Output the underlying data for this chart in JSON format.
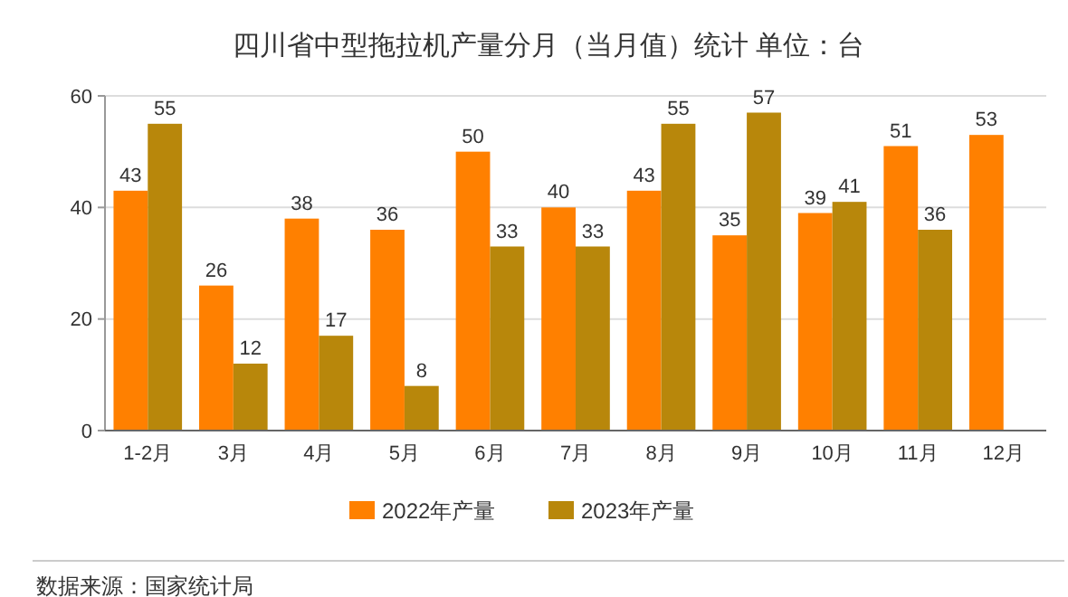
{
  "chart_data": {
    "type": "bar",
    "title": "四川省中型拖拉机产量分月（当月值）统计  单位：台",
    "categories": [
      "1-2月",
      "3月",
      "4月",
      "5月",
      "6月",
      "7月",
      "8月",
      "9月",
      "10月",
      "11月",
      "12月"
    ],
    "series": [
      {
        "name": "2022年产量",
        "color": "#ff8000",
        "values": [
          43,
          26,
          38,
          36,
          50,
          40,
          43,
          35,
          39,
          51,
          53
        ]
      },
      {
        "name": "2023年产量",
        "color": "#b8870b",
        "values": [
          55,
          12,
          17,
          8,
          33,
          33,
          55,
          57,
          41,
          36,
          null
        ]
      }
    ],
    "ylim": [
      0,
      60
    ],
    "yticks": [
      0,
      20,
      40,
      60
    ],
    "grid": "y",
    "legend": "bottom",
    "data_labels": true,
    "annotations": [
      "数据来源：国家统计局"
    ]
  }
}
